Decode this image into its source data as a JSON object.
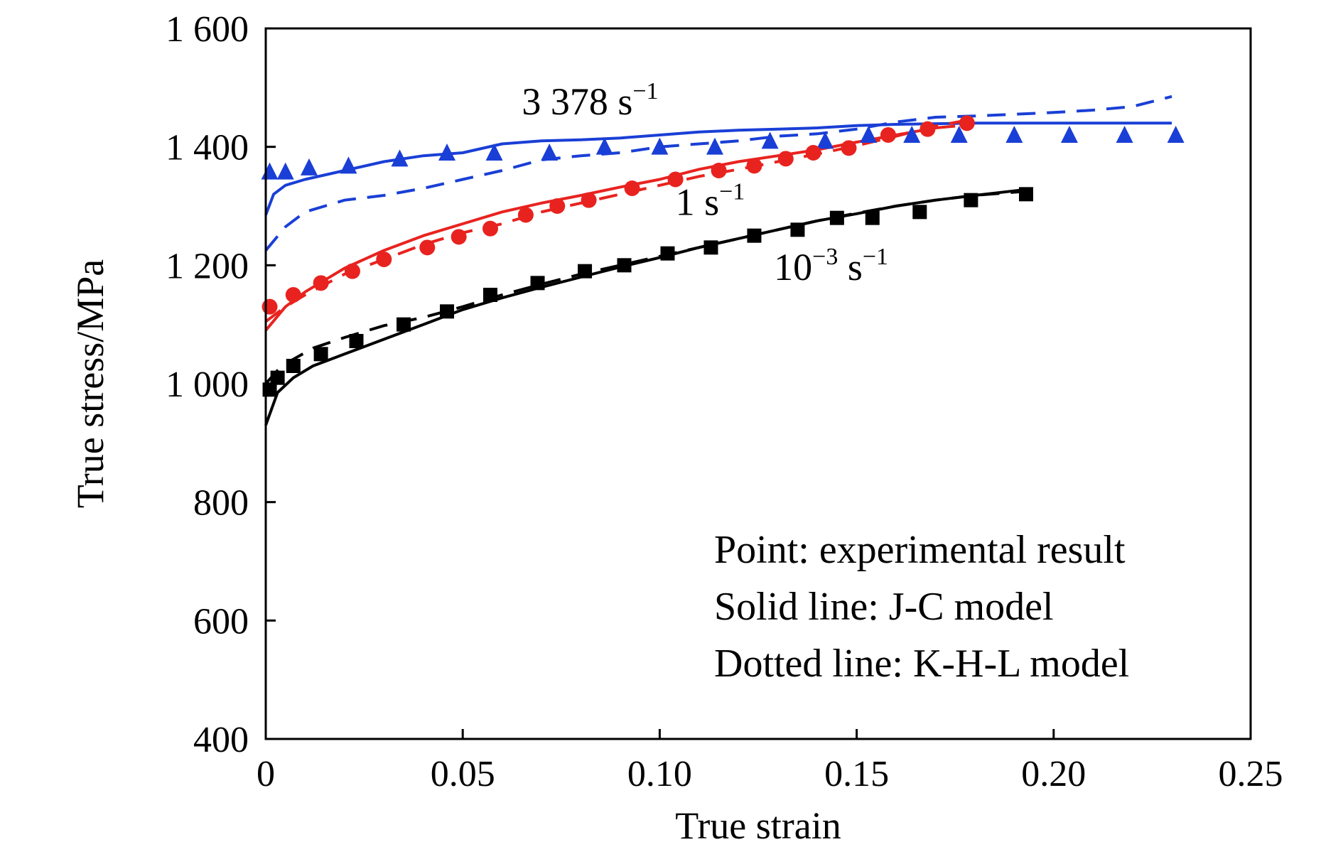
{
  "chart_data": {
    "type": "line",
    "xlabel": "True strain",
    "ylabel": "True stress/MPa",
    "xlim": [
      0,
      0.25
    ],
    "ylim": [
      400,
      1600
    ],
    "x_ticks": [
      0,
      0.05,
      0.1,
      0.15,
      0.2,
      0.25
    ],
    "x_tick_labels": [
      "0",
      "0.05",
      "0.10",
      "0.15",
      "0.20",
      "0.25"
    ],
    "y_ticks": [
      400,
      600,
      800,
      1000,
      1200,
      1400,
      1600
    ],
    "y_tick_labels": [
      "400",
      "600",
      "800",
      "1 000",
      "1 200",
      "1 400",
      "1 600"
    ],
    "grid": false,
    "legend_notes": [
      "Point: experimental result",
      "Solid line: J-C model",
      "Dotted line: K-H-L model"
    ],
    "rate_labels": [
      {
        "base": "3 378 s",
        "sup": "−1",
        "x": 0.065,
        "y": 1455,
        "color": "#000000"
      },
      {
        "base": "1 s",
        "sup": "−1",
        "x": 0.104,
        "y": 1285,
        "color": "#000000"
      },
      {
        "base": "10",
        "sup": "−3",
        "base2": " s",
        "sup2": "−1",
        "x": 0.129,
        "y": 1175,
        "color": "#000000"
      }
    ],
    "series": [
      {
        "name": "3 378 s−1",
        "color": "#1a3fd6",
        "marker": "triangle",
        "experimental": {
          "x": [
            0.001,
            0.005,
            0.011,
            0.021,
            0.034,
            0.046,
            0.058,
            0.072,
            0.086,
            0.1,
            0.114,
            0.128,
            0.142,
            0.153,
            0.164,
            0.176,
            0.19,
            0.204,
            0.218,
            0.231
          ],
          "y": [
            1358,
            1358,
            1365,
            1368,
            1380,
            1390,
            1390,
            1390,
            1400,
            1400,
            1400,
            1410,
            1410,
            1420,
            1420,
            1420,
            1420,
            1420,
            1420,
            1420
          ]
        },
        "jc_model": {
          "x": [
            0,
            0.002,
            0.005,
            0.01,
            0.02,
            0.03,
            0.04,
            0.05,
            0.06,
            0.07,
            0.08,
            0.09,
            0.1,
            0.11,
            0.12,
            0.13,
            0.14,
            0.15,
            0.16,
            0.18,
            0.2,
            0.22,
            0.23
          ],
          "y": [
            1285,
            1320,
            1335,
            1345,
            1360,
            1375,
            1385,
            1390,
            1405,
            1410,
            1412,
            1415,
            1420,
            1425,
            1428,
            1430,
            1432,
            1436,
            1438,
            1440,
            1440,
            1440,
            1440
          ]
        },
        "khl_model": {
          "x": [
            0,
            0.005,
            0.01,
            0.02,
            0.03,
            0.04,
            0.05,
            0.06,
            0.07,
            0.08,
            0.09,
            0.1,
            0.11,
            0.12,
            0.13,
            0.14,
            0.15,
            0.16,
            0.17,
            0.18,
            0.19,
            0.2,
            0.21,
            0.22,
            0.23
          ],
          "y": [
            1225,
            1265,
            1290,
            1310,
            1318,
            1330,
            1345,
            1360,
            1378,
            1385,
            1390,
            1400,
            1405,
            1410,
            1418,
            1422,
            1430,
            1442,
            1450,
            1452,
            1455,
            1458,
            1462,
            1468,
            1485
          ]
        }
      },
      {
        "name": "1 s−1",
        "color": "#e8231f",
        "marker": "circle",
        "experimental": {
          "x": [
            0.001,
            0.007,
            0.014,
            0.022,
            0.03,
            0.041,
            0.049,
            0.057,
            0.066,
            0.074,
            0.082,
            0.093,
            0.104,
            0.115,
            0.124,
            0.132,
            0.139,
            0.148,
            0.158,
            0.168,
            0.178
          ],
          "y": [
            1130,
            1150,
            1170,
            1190,
            1210,
            1230,
            1248,
            1262,
            1285,
            1300,
            1310,
            1330,
            1345,
            1360,
            1368,
            1380,
            1390,
            1398,
            1420,
            1430,
            1440
          ]
        },
        "jc_model": {
          "x": [
            0,
            0.005,
            0.01,
            0.02,
            0.03,
            0.04,
            0.05,
            0.06,
            0.07,
            0.08,
            0.09,
            0.1,
            0.11,
            0.12,
            0.13,
            0.14,
            0.15,
            0.16,
            0.17,
            0.175
          ],
          "y": [
            1090,
            1130,
            1155,
            1195,
            1225,
            1250,
            1270,
            1290,
            1305,
            1318,
            1332,
            1345,
            1362,
            1375,
            1385,
            1395,
            1408,
            1420,
            1432,
            1435
          ]
        },
        "khl_model": {
          "x": [
            0,
            0.005,
            0.01,
            0.02,
            0.03,
            0.04,
            0.05,
            0.06,
            0.07,
            0.08,
            0.09,
            0.1,
            0.11,
            0.12,
            0.13,
            0.14,
            0.15,
            0.16,
            0.17,
            0.178
          ],
          "y": [
            1105,
            1130,
            1150,
            1185,
            1210,
            1235,
            1255,
            1270,
            1290,
            1305,
            1320,
            1335,
            1350,
            1362,
            1375,
            1388,
            1402,
            1418,
            1435,
            1445
          ]
        }
      },
      {
        "name": "10−3 s−1",
        "color": "#000000",
        "marker": "square",
        "experimental": {
          "x": [
            0.001,
            0.003,
            0.007,
            0.014,
            0.023,
            0.035,
            0.046,
            0.057,
            0.069,
            0.081,
            0.091,
            0.102,
            0.113,
            0.124,
            0.135,
            0.145,
            0.154,
            0.166,
            0.179,
            0.193
          ],
          "y": [
            990,
            1010,
            1030,
            1050,
            1072,
            1100,
            1122,
            1150,
            1170,
            1190,
            1200,
            1220,
            1230,
            1250,
            1260,
            1280,
            1280,
            1290,
            1310,
            1320
          ]
        },
        "jc_model": {
          "x": [
            0,
            0.003,
            0.007,
            0.012,
            0.02,
            0.03,
            0.04,
            0.05,
            0.06,
            0.07,
            0.08,
            0.09,
            0.1,
            0.11,
            0.12,
            0.13,
            0.14,
            0.15,
            0.16,
            0.17,
            0.18,
            0.193
          ],
          "y": [
            930,
            985,
            1010,
            1030,
            1050,
            1075,
            1100,
            1125,
            1145,
            1163,
            1180,
            1197,
            1213,
            1230,
            1245,
            1260,
            1275,
            1287,
            1300,
            1310,
            1318,
            1328
          ]
        },
        "khl_model": {
          "x": [
            0,
            0.004,
            0.008,
            0.012,
            0.02,
            0.03,
            0.04,
            0.05,
            0.06,
            0.07,
            0.08,
            0.09,
            0.1,
            0.11,
            0.12,
            0.13,
            0.14,
            0.15,
            0.16,
            0.17,
            0.18,
            0.193
          ],
          "y": [
            1000,
            1030,
            1045,
            1060,
            1078,
            1098,
            1112,
            1130,
            1150,
            1168,
            1185,
            1200,
            1215,
            1230,
            1245,
            1260,
            1275,
            1288,
            1300,
            1310,
            1318,
            1325
          ]
        }
      }
    ]
  }
}
